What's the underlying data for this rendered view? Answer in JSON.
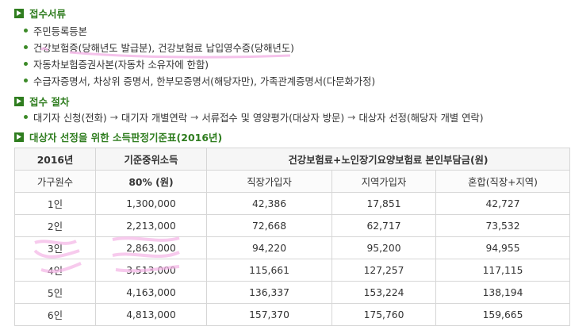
{
  "documents": {
    "title": "접수서류",
    "items": [
      "주민등록등본",
      "건강보험증(당해년도 발급분), 건강보험료 납입영수증(당해년도)",
      "자동차보험증권사본(자동차 소유자에 한함)",
      "수급자증명서, 차상위 증명서, 한부모증명서(해당자만), 가족관계증명서(다문화가정)"
    ]
  },
  "procedure": {
    "title": "접수 절차",
    "steps": [
      "대기자 신청(전화)",
      "대기자 개별연락",
      "서류접수 및 영양평가(대상자 방문)",
      "대상자 선정(해당자 개별 연락)"
    ],
    "arrow": "→"
  },
  "income_table": {
    "title": "대상자 선정을 위한 소득판정기준표(2016년)",
    "header1": {
      "year": "2016년",
      "median": "기준중위소득",
      "premium": "건강보험료+노인장기요양보험료 본인부담금(원)"
    },
    "header2": {
      "household": "가구원수",
      "pct": "80% (원)",
      "employee": "직장가입자",
      "regional": "지역가입자",
      "mixed": "혼합(직장+지역)"
    },
    "rows": [
      {
        "members": "1인",
        "income": "1,300,000",
        "employee": "42,386",
        "regional": "17,851",
        "mixed": "42,727"
      },
      {
        "members": "2인",
        "income": "2,213,000",
        "employee": "72,668",
        "regional": "62,717",
        "mixed": "73,532"
      },
      {
        "members": "3인",
        "income": "2,863,000",
        "employee": "94,220",
        "regional": "95,200",
        "mixed": "94,955"
      },
      {
        "members": "4인",
        "income": "3,513,000",
        "employee": "115,661",
        "regional": "127,257",
        "mixed": "117,115"
      },
      {
        "members": "5인",
        "income": "4,163,000",
        "employee": "136,337",
        "regional": "153,224",
        "mixed": "138,194"
      },
      {
        "members": "6인",
        "income": "4,813,000",
        "employee": "157,370",
        "regional": "175,760",
        "mixed": "159,665"
      }
    ]
  },
  "colors": {
    "accent": "#2f7d1f",
    "highlight": "#f3b3e6"
  }
}
